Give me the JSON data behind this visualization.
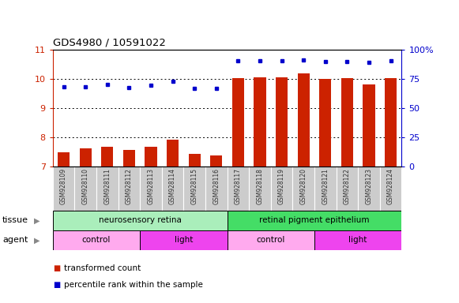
{
  "title": "GDS4980 / 10591022",
  "samples": [
    "GSM928109",
    "GSM928110",
    "GSM928111",
    "GSM928112",
    "GSM928113",
    "GSM928114",
    "GSM928115",
    "GSM928116",
    "GSM928117",
    "GSM928118",
    "GSM928119",
    "GSM928120",
    "GSM928121",
    "GSM928122",
    "GSM928123",
    "GSM928124"
  ],
  "bar_values": [
    7.48,
    7.64,
    7.68,
    7.58,
    7.68,
    7.93,
    7.45,
    7.38,
    10.03,
    10.05,
    10.07,
    10.21,
    10.01,
    10.03,
    9.82,
    10.04
  ],
  "dot_values": [
    9.74,
    9.73,
    9.83,
    9.72,
    9.78,
    9.94,
    9.68,
    9.69,
    10.64,
    10.62,
    10.62,
    10.67,
    10.61,
    10.61,
    10.57,
    10.63
  ],
  "bar_color": "#cc2200",
  "dot_color": "#0000cc",
  "ylim_left": [
    7,
    11
  ],
  "ylim_right": [
    0,
    100
  ],
  "yticks_left": [
    7,
    8,
    9,
    10,
    11
  ],
  "yticks_right": [
    0,
    25,
    50,
    75,
    100
  ],
  "right_tick_labels": [
    "0",
    "25",
    "50",
    "75",
    "100%"
  ],
  "tissue_groups": [
    {
      "label": "neurosensory retina",
      "start": 0,
      "end": 8,
      "color": "#aaeebb"
    },
    {
      "label": "retinal pigment epithelium",
      "start": 8,
      "end": 16,
      "color": "#44dd66"
    }
  ],
  "agent_groups": [
    {
      "label": "control",
      "start": 0,
      "end": 4,
      "color": "#ffaaee"
    },
    {
      "label": "light",
      "start": 4,
      "end": 8,
      "color": "#ee44ee"
    },
    {
      "label": "control",
      "start": 8,
      "end": 12,
      "color": "#ffaaee"
    },
    {
      "label": "light",
      "start": 12,
      "end": 16,
      "color": "#ee44ee"
    }
  ],
  "legend_items": [
    {
      "label": "transformed count",
      "color": "#cc2200"
    },
    {
      "label": "percentile rank within the sample",
      "color": "#0000cc"
    }
  ],
  "xticklabel_bg": "#cccccc",
  "xticklabel_color": "#333333"
}
